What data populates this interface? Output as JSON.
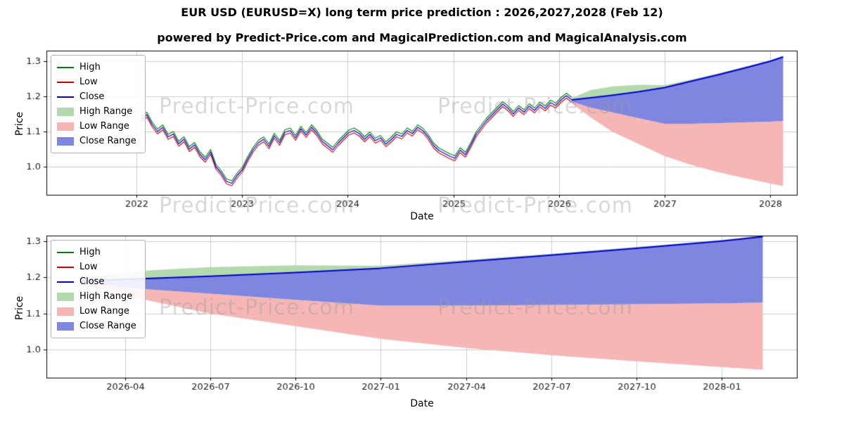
{
  "page": {
    "title": "EUR USD (EURUSD=X) long term price prediction : 2026,2027,2028 (Feb 12)",
    "subtitle": "powered by Predict-Price.com and MagicalPrediction.com and MagicalAnalysis.com"
  },
  "watermark": {
    "text": "Predict-Price.com"
  },
  "colors": {
    "high_line": "#008000",
    "low_line": "#d40000",
    "close_line": "#0000cd",
    "high_range": "#b5d9ae",
    "low_range": "#f6b6b6",
    "close_range": "#7e86e0",
    "grid": "#cccccc",
    "axis": "#000000",
    "tick_label": "#1a1a1a"
  },
  "legend": [
    {
      "label": "High",
      "type": "line",
      "color": "#008000"
    },
    {
      "label": "Low",
      "type": "line",
      "color": "#d40000"
    },
    {
      "label": "Close",
      "type": "line",
      "color": "#0000cd"
    },
    {
      "label": "High Range",
      "type": "patch",
      "color": "#b5d9ae"
    },
    {
      "label": "Low Range",
      "type": "patch",
      "color": "#f6b6b6"
    },
    {
      "label": "Close Range",
      "type": "patch",
      "color": "#7e86e0"
    }
  ],
  "chart_data": [
    {
      "type": "line",
      "xlabel": "Date",
      "ylabel": "Price",
      "xlim": [
        2021.15,
        2028.25
      ],
      "ylim": [
        0.92,
        1.33
      ],
      "xticks": {
        "values": [
          2022,
          2023,
          2024,
          2025,
          2026,
          2027,
          2028
        ],
        "labels": [
          "2022",
          "2023",
          "2024",
          "2025",
          "2026",
          "2027",
          "2028"
        ]
      },
      "yticks": {
        "values": [
          1.0,
          1.1,
          1.2,
          1.3
        ],
        "labels": [
          "1.0",
          "1.1",
          "1.2",
          "1.3"
        ]
      },
      "historical": {
        "x_start": 2022.05,
        "x_end": 2026.12,
        "spread": 0.014,
        "close": [
          1.135,
          1.148,
          1.12,
          1.1,
          1.112,
          1.085,
          1.093,
          1.065,
          1.078,
          1.05,
          1.062,
          1.035,
          1.02,
          1.042,
          1.0,
          0.982,
          0.958,
          0.953,
          0.975,
          0.992,
          1.022,
          1.048,
          1.068,
          1.078,
          1.058,
          1.088,
          1.068,
          1.098,
          1.103,
          1.082,
          1.108,
          1.09,
          1.112,
          1.096,
          1.072,
          1.06,
          1.048,
          1.067,
          1.082,
          1.097,
          1.103,
          1.094,
          1.078,
          1.092,
          1.074,
          1.082,
          1.064,
          1.077,
          1.092,
          1.086,
          1.103,
          1.094,
          1.112,
          1.102,
          1.084,
          1.06,
          1.046,
          1.038,
          1.03,
          1.024,
          1.047,
          1.034,
          1.062,
          1.092,
          1.112,
          1.132,
          1.147,
          1.163,
          1.178,
          1.166,
          1.15,
          1.167,
          1.155,
          1.172,
          1.16,
          1.177,
          1.166,
          1.182,
          1.174,
          1.19,
          1.202,
          1.19
        ]
      },
      "prediction": {
        "x": [
          2026.12,
          2026.3,
          2026.5,
          2026.75,
          2027.0,
          2027.25,
          2027.5,
          2027.75,
          2028.0,
          2028.12
        ],
        "close": [
          1.19,
          1.196,
          1.203,
          1.213,
          1.225,
          1.243,
          1.261,
          1.28,
          1.3,
          1.312
        ],
        "high_upper": [
          1.195,
          1.218,
          1.228,
          1.233,
          1.232,
          1.248,
          1.265,
          1.284,
          1.303,
          1.316
        ],
        "close_lower": [
          1.185,
          1.168,
          1.155,
          1.138,
          1.122,
          1.122,
          1.124,
          1.126,
          1.128,
          1.13
        ],
        "low_lower": [
          1.18,
          1.14,
          1.1,
          1.065,
          1.03,
          1.005,
          0.985,
          0.968,
          0.952,
          0.945
        ]
      }
    },
    {
      "type": "line",
      "xlabel": "Date",
      "ylabel": "Price",
      "xlim": [
        2026.02,
        2028.22
      ],
      "ylim": [
        0.923,
        1.315
      ],
      "xticks": {
        "values": [
          2026.25,
          2026.5,
          2026.75,
          2027.0,
          2027.25,
          2027.5,
          2027.75,
          2028.0
        ],
        "labels": [
          "2026-04",
          "2026-07",
          "2026-10",
          "2027-01",
          "2027-04",
          "2027-07",
          "2027-10",
          "2028-01"
        ]
      },
      "yticks": {
        "values": [
          1.0,
          1.1,
          1.2,
          1.3
        ],
        "labels": [
          "1.0",
          "1.1",
          "1.2",
          "1.3"
        ]
      },
      "prediction": {
        "x": [
          2026.12,
          2026.3,
          2026.5,
          2026.75,
          2027.0,
          2027.25,
          2027.5,
          2027.75,
          2028.0,
          2028.12
        ],
        "close": [
          1.19,
          1.196,
          1.203,
          1.213,
          1.225,
          1.243,
          1.261,
          1.28,
          1.3,
          1.312
        ],
        "high_upper": [
          1.195,
          1.218,
          1.228,
          1.233,
          1.232,
          1.248,
          1.265,
          1.284,
          1.303,
          1.316
        ],
        "close_lower": [
          1.185,
          1.168,
          1.155,
          1.138,
          1.122,
          1.122,
          1.124,
          1.126,
          1.128,
          1.13
        ],
        "low_lower": [
          1.18,
          1.14,
          1.1,
          1.065,
          1.03,
          1.005,
          0.985,
          0.968,
          0.952,
          0.945
        ]
      }
    }
  ]
}
